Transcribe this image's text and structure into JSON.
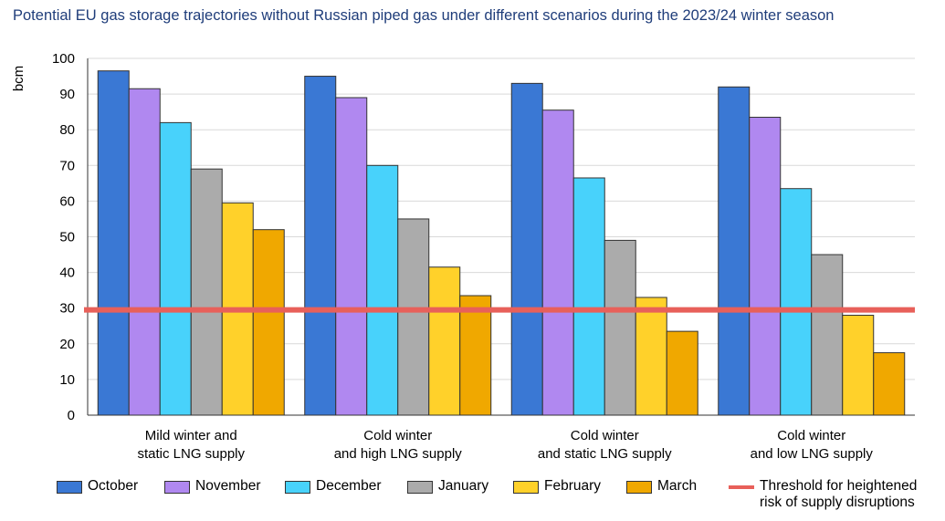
{
  "title": "Potential EU gas storage trajectories without Russian piped gas under different scenarios during the 2023/24 winter season",
  "chart_data": {
    "type": "bar",
    "title": "Potential EU gas storage trajectories without Russian piped gas under different scenarios during the 2023/24 winter season",
    "ylabel": "bcm",
    "xlabel": "",
    "ylim": [
      0,
      100
    ],
    "yticks": [
      0,
      10,
      20,
      30,
      40,
      50,
      60,
      70,
      80,
      90,
      100
    ],
    "grid": true,
    "legend_position": "bottom",
    "categories": [
      "Mild winter and\nstatic LNG supply",
      "Cold winter\nand high LNG supply",
      "Cold winter\nand static LNG supply",
      "Cold winter\nand low LNG supply"
    ],
    "series": [
      {
        "name": "October",
        "color": "#3a78d4",
        "values": [
          96.5,
          95,
          93,
          92
        ]
      },
      {
        "name": "November",
        "color": "#b088f0",
        "values": [
          91.5,
          89,
          85.5,
          83.5
        ]
      },
      {
        "name": "December",
        "color": "#48d2fb",
        "values": [
          82,
          70,
          66.5,
          63.5
        ]
      },
      {
        "name": "January",
        "color": "#ababab",
        "values": [
          69,
          55,
          49,
          45
        ]
      },
      {
        "name": "February",
        "color": "#ffd12a",
        "values": [
          59.5,
          41.5,
          33,
          28
        ]
      },
      {
        "name": "March",
        "color": "#f0a800",
        "values": [
          52,
          33.5,
          23.5,
          17.5
        ]
      }
    ],
    "threshold": {
      "name": "Threshold for heightened\nrisk of supply disruptions",
      "value": 29.5,
      "color": "#e8605a"
    }
  }
}
